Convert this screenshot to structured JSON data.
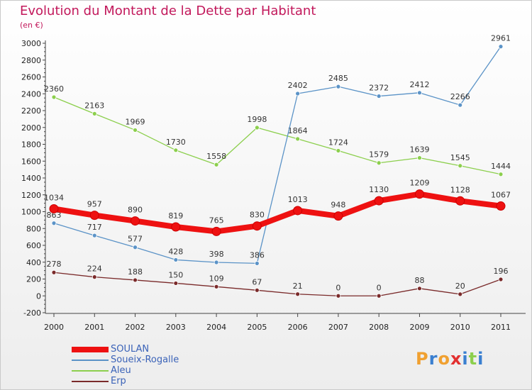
{
  "chart_data": {
    "type": "line",
    "title": "Evolution du Montant de la Dette par Habitant",
    "subtitle": "(en €)",
    "x": [
      "2000",
      "2001",
      "2002",
      "2003",
      "2004",
      "2005",
      "2006",
      "2007",
      "2008",
      "2009",
      "2010",
      "2011"
    ],
    "ylim": [
      -200,
      3000
    ],
    "y_ticks": [
      -200,
      0,
      200,
      400,
      600,
      800,
      1000,
      1200,
      1400,
      1600,
      1800,
      2000,
      2200,
      2400,
      2600,
      2800,
      3000
    ],
    "grid": false,
    "legend_placement": "bottom-left",
    "series": [
      {
        "name": "SOULAN",
        "color": "#ee1111",
        "values": [
          1034,
          957,
          890,
          819,
          765,
          830,
          1013,
          948,
          1130,
          1209,
          1128,
          1067
        ],
        "thick": true
      },
      {
        "name": "Soueix-Rogalle",
        "color": "#5b93c7",
        "values": [
          863,
          717,
          577,
          428,
          398,
          386,
          2402,
          2485,
          2372,
          2412,
          2266,
          2961
        ]
      },
      {
        "name": "Aleu",
        "color": "#8ccf4d",
        "values": [
          2360,
          2163,
          1969,
          1730,
          1558,
          1998,
          1864,
          1724,
          1579,
          1639,
          1545,
          1444
        ]
      },
      {
        "name": "Erp",
        "color": "#7a2a2a",
        "values": [
          278,
          224,
          188,
          150,
          109,
          67,
          21,
          0,
          0,
          88,
          20,
          196
        ]
      }
    ]
  },
  "logo": {
    "text": "Proxiti",
    "letters": [
      {
        "ch": "P",
        "color": "#f0a030"
      },
      {
        "ch": "r",
        "color": "#3a7fd0"
      },
      {
        "ch": "o",
        "color": "#f0a030"
      },
      {
        "ch": "x",
        "color": "#e23030"
      },
      {
        "ch": "i",
        "color": "#3a7fd0"
      },
      {
        "ch": "t",
        "color": "#8ccf4d"
      },
      {
        "ch": "i",
        "color": "#3a7fd0"
      }
    ]
  }
}
